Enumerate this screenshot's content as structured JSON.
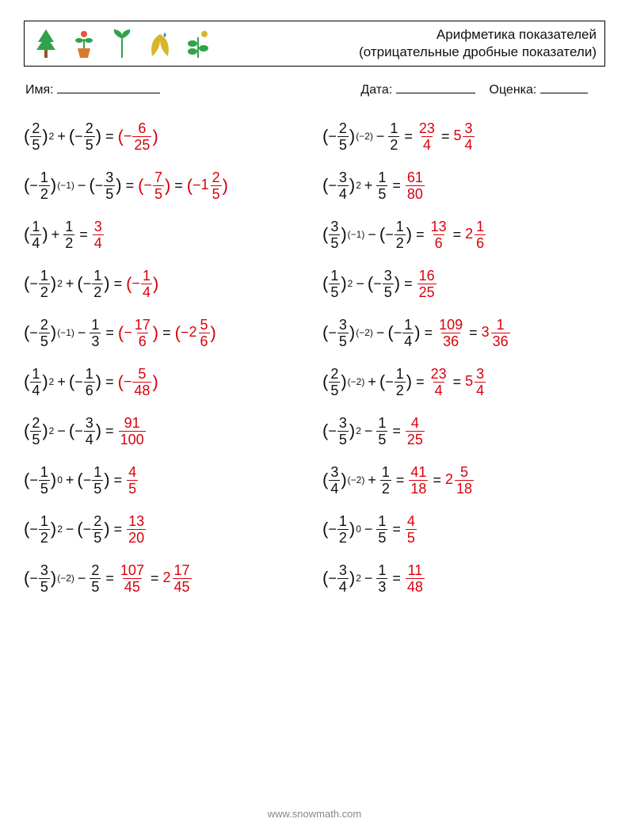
{
  "header": {
    "title_line1": "Арифметика показателей",
    "title_line2": "(отрицательные дробные показатели)"
  },
  "labels": {
    "name": "Имя:",
    "date": "Дата:",
    "grade": "Оценка:"
  },
  "footer": "www.snowmath.com",
  "style": {
    "answer_color": "#d8000c",
    "text_color": "#111111",
    "border_color": "#000000",
    "fontsize_body": 18,
    "fontsize_title": 17,
    "fontsize_labels": 16
  },
  "icons": [
    {
      "name": "tree-icon",
      "colors": {
        "leaf": "#2fa34a",
        "trunk": "#8c5a33"
      }
    },
    {
      "name": "pot-plant-icon",
      "colors": {
        "leaf": "#2fa34a",
        "pot": "#d97a2f",
        "flower": "#e7533a"
      }
    },
    {
      "name": "sprout-icon",
      "colors": {
        "leaf": "#2fa34a",
        "stem": "#2fa34a"
      }
    },
    {
      "name": "leaf-drop-icon",
      "colors": {
        "leaf": "#d9b627",
        "drop": "#2a8ad9"
      }
    },
    {
      "name": "seedling-bug-icon",
      "colors": {
        "leaf": "#2fa34a",
        "bug": "#d9b627"
      }
    }
  ],
  "columns": {
    "left": [
      {
        "base_sign": "",
        "num": "2",
        "den": "5",
        "exp": "2",
        "op": "+",
        "t2_sign": "−",
        "t2_num": "2",
        "t2_den": "5",
        "answers": [
          {
            "type": "pfrac",
            "sign": "−",
            "n": "6",
            "d": "25"
          }
        ]
      },
      {
        "base_sign": "−",
        "num": "1",
        "den": "2",
        "exp": "(−1)",
        "op": "−",
        "t2_sign": "−",
        "t2_num": "3",
        "t2_den": "5",
        "answers": [
          {
            "type": "pfrac",
            "sign": "−",
            "n": "7",
            "d": "5"
          },
          {
            "type": "pmixed",
            "sign": "−",
            "w": "1",
            "n": "2",
            "d": "5"
          }
        ]
      },
      {
        "base_sign": "",
        "num": "1",
        "den": "4",
        "exp": "",
        "op": "+",
        "t2_sign": "",
        "t2_num": "1",
        "t2_den": "2",
        "answers": [
          {
            "type": "frac",
            "n": "3",
            "d": "4"
          }
        ]
      },
      {
        "base_sign": "−",
        "num": "1",
        "den": "2",
        "exp": "2",
        "op": "+",
        "t2_sign": "−",
        "t2_num": "1",
        "t2_den": "2",
        "answers": [
          {
            "type": "pfrac",
            "sign": "−",
            "n": "1",
            "d": "4"
          }
        ]
      },
      {
        "base_sign": "−",
        "num": "2",
        "den": "5",
        "exp": "(−1)",
        "op": "−",
        "t2_sign": "",
        "t2_num": "1",
        "t2_den": "3",
        "answers": [
          {
            "type": "pfrac",
            "sign": "−",
            "n": "17",
            "d": "6"
          },
          {
            "type": "pmixed",
            "sign": "−",
            "w": "2",
            "n": "5",
            "d": "6"
          }
        ]
      },
      {
        "base_sign": "",
        "num": "1",
        "den": "4",
        "exp": "2",
        "op": "+",
        "t2_sign": "−",
        "t2_num": "1",
        "t2_den": "6",
        "answers": [
          {
            "type": "pfrac",
            "sign": "−",
            "n": "5",
            "d": "48"
          }
        ]
      },
      {
        "base_sign": "",
        "num": "2",
        "den": "5",
        "exp": "2",
        "op": "−",
        "t2_sign": "−",
        "t2_num": "3",
        "t2_den": "4",
        "answers": [
          {
            "type": "frac",
            "n": "91",
            "d": "100"
          }
        ]
      },
      {
        "base_sign": "−",
        "num": "1",
        "den": "5",
        "exp": "0",
        "op": "+",
        "t2_sign": "−",
        "t2_num": "1",
        "t2_den": "5",
        "answers": [
          {
            "type": "frac",
            "n": "4",
            "d": "5"
          }
        ]
      },
      {
        "base_sign": "−",
        "num": "1",
        "den": "2",
        "exp": "2",
        "op": "−",
        "t2_sign": "−",
        "t2_num": "2",
        "t2_den": "5",
        "answers": [
          {
            "type": "frac",
            "n": "13",
            "d": "20"
          }
        ]
      },
      {
        "base_sign": "−",
        "num": "3",
        "den": "5",
        "exp": "(−2)",
        "op": "−",
        "t2_sign": "",
        "t2_num": "2",
        "t2_den": "5",
        "answers": [
          {
            "type": "frac",
            "n": "107",
            "d": "45"
          },
          {
            "type": "mixed",
            "w": "2",
            "n": "17",
            "d": "45"
          }
        ]
      }
    ],
    "right": [
      {
        "base_sign": "−",
        "num": "2",
        "den": "5",
        "exp": "(−2)",
        "op": "−",
        "t2_sign": "",
        "t2_num": "1",
        "t2_den": "2",
        "answers": [
          {
            "type": "frac",
            "n": "23",
            "d": "4"
          },
          {
            "type": "mixed",
            "w": "5",
            "n": "3",
            "d": "4"
          }
        ]
      },
      {
        "base_sign": "−",
        "num": "3",
        "den": "4",
        "exp": "2",
        "op": "+",
        "t2_sign": "",
        "t2_num": "1",
        "t2_den": "5",
        "answers": [
          {
            "type": "frac",
            "n": "61",
            "d": "80"
          }
        ]
      },
      {
        "base_sign": "",
        "num": "3",
        "den": "5",
        "exp": "(−1)",
        "op": "−",
        "t2_sign": "−",
        "t2_num": "1",
        "t2_den": "2",
        "answers": [
          {
            "type": "frac",
            "n": "13",
            "d": "6"
          },
          {
            "type": "mixed",
            "w": "2",
            "n": "1",
            "d": "6"
          }
        ]
      },
      {
        "base_sign": "",
        "num": "1",
        "den": "5",
        "exp": "2",
        "op": "−",
        "t2_sign": "−",
        "t2_num": "3",
        "t2_den": "5",
        "answers": [
          {
            "type": "frac",
            "n": "16",
            "d": "25"
          }
        ]
      },
      {
        "base_sign": "−",
        "num": "3",
        "den": "5",
        "exp": "(−2)",
        "op": "−",
        "t2_sign": "−",
        "t2_num": "1",
        "t2_den": "4",
        "answers": [
          {
            "type": "frac",
            "n": "109",
            "d": "36"
          },
          {
            "type": "mixed",
            "w": "3",
            "n": "1",
            "d": "36"
          }
        ]
      },
      {
        "base_sign": "",
        "num": "2",
        "den": "5",
        "exp": "(−2)",
        "op": "+",
        "t2_sign": "−",
        "t2_num": "1",
        "t2_den": "2",
        "answers": [
          {
            "type": "frac",
            "n": "23",
            "d": "4"
          },
          {
            "type": "mixed",
            "w": "5",
            "n": "3",
            "d": "4"
          }
        ]
      },
      {
        "base_sign": "−",
        "num": "3",
        "den": "5",
        "exp": "2",
        "op": "−",
        "t2_sign": "",
        "t2_num": "1",
        "t2_den": "5",
        "answers": [
          {
            "type": "frac",
            "n": "4",
            "d": "25"
          }
        ]
      },
      {
        "base_sign": "",
        "num": "3",
        "den": "4",
        "exp": "(−2)",
        "op": "+",
        "t2_sign": "",
        "t2_num": "1",
        "t2_den": "2",
        "answers": [
          {
            "type": "frac",
            "n": "41",
            "d": "18"
          },
          {
            "type": "mixed",
            "w": "2",
            "n": "5",
            "d": "18"
          }
        ]
      },
      {
        "base_sign": "−",
        "num": "1",
        "den": "2",
        "exp": "0",
        "op": "−",
        "t2_sign": "",
        "t2_num": "1",
        "t2_den": "5",
        "answers": [
          {
            "type": "frac",
            "n": "4",
            "d": "5"
          }
        ]
      },
      {
        "base_sign": "−",
        "num": "3",
        "den": "4",
        "exp": "2",
        "op": "−",
        "t2_sign": "",
        "t2_num": "1",
        "t2_den": "3",
        "answers": [
          {
            "type": "frac",
            "n": "11",
            "d": "48"
          }
        ]
      }
    ]
  }
}
